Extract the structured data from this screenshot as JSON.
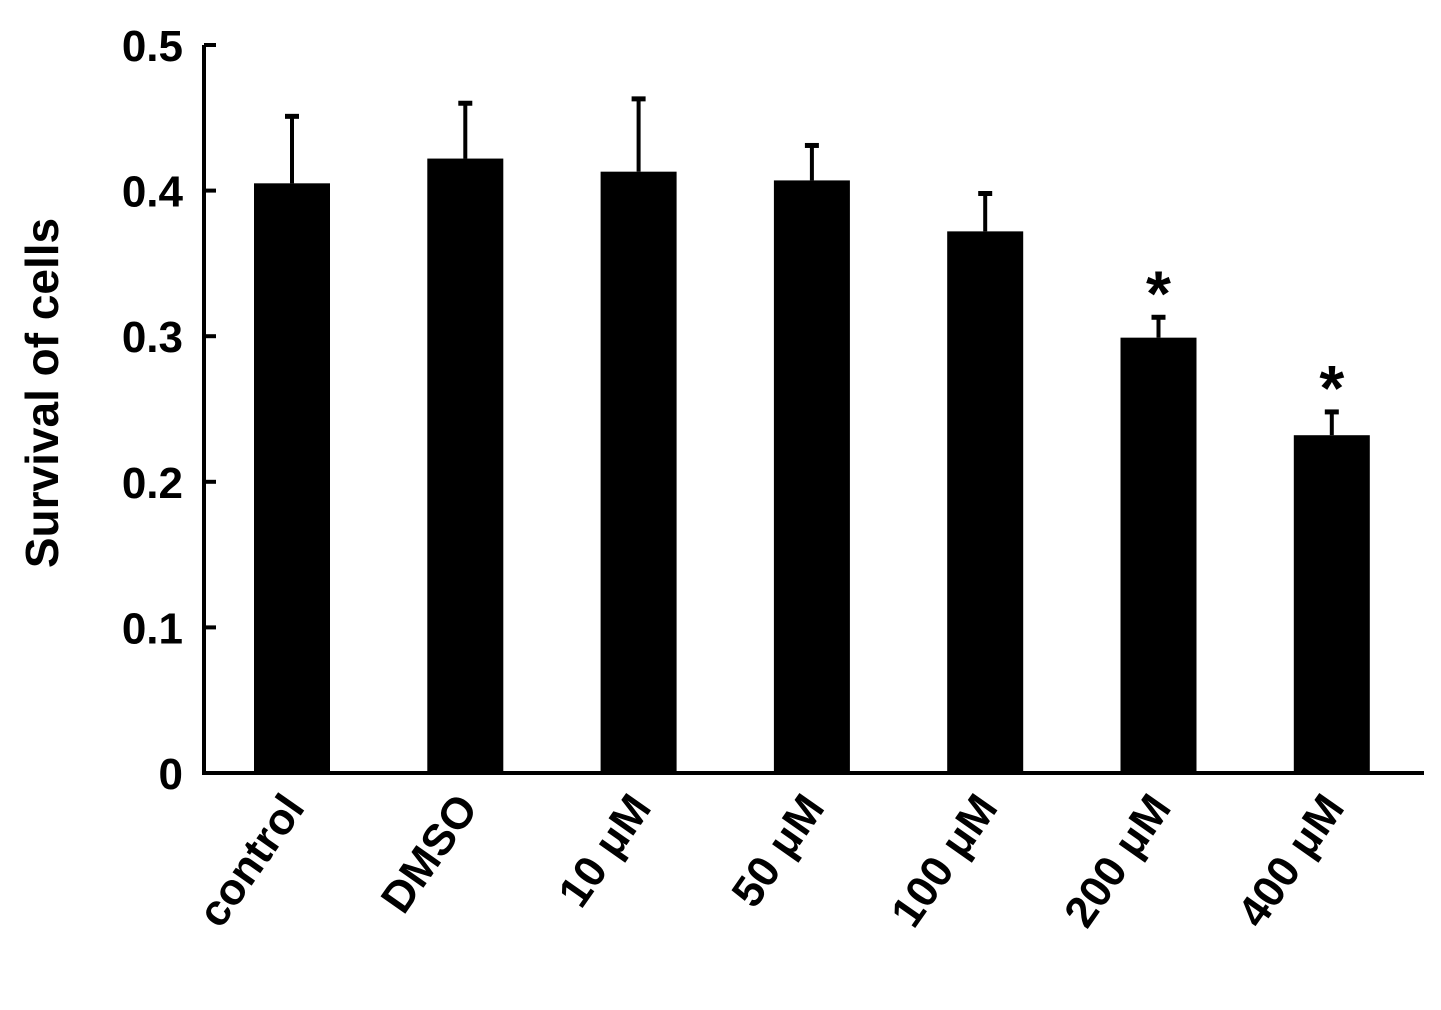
{
  "chart_data": {
    "type": "bar",
    "title": "",
    "xlabel": "",
    "ylabel": "Survival of cells",
    "ylim": [
      0,
      0.5
    ],
    "yticks": [
      "0",
      "0.1",
      "0.2",
      "0.3",
      "0.4",
      "0.5"
    ],
    "grid": false,
    "legend": "none",
    "categories": [
      "control",
      "DMSO",
      "10 μM",
      "50 μM",
      "100 μM",
      "200 μM",
      "400 μM"
    ],
    "values": [
      0.405,
      0.422,
      0.413,
      0.407,
      0.372,
      0.299,
      0.232
    ],
    "error_upper": [
      0.046,
      0.038,
      0.05,
      0.024,
      0.026,
      0.014,
      0.016
    ],
    "significance": [
      "",
      "",
      "",
      "",
      "",
      "*",
      "*"
    ],
    "bar_color": "#000000"
  }
}
